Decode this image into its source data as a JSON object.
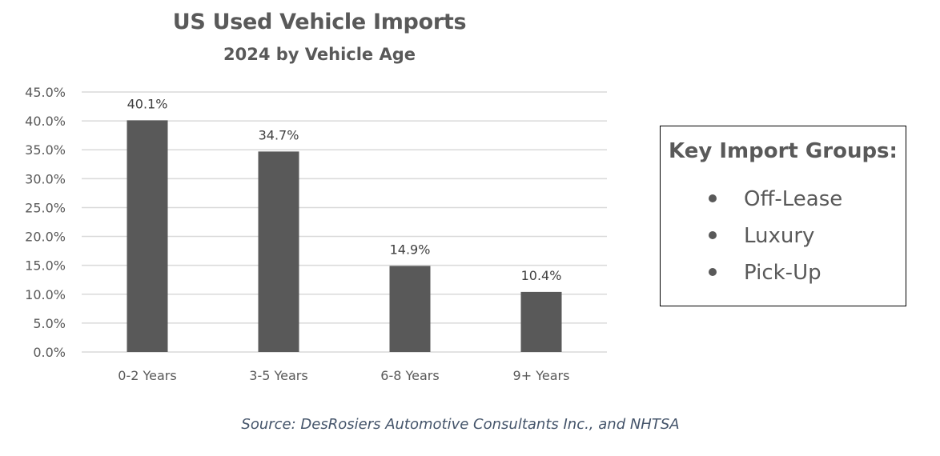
{
  "chart_data": {
    "type": "bar",
    "title": "US Used Vehicle Imports",
    "subtitle": "2024 by Vehicle Age",
    "xlabel": "",
    "ylabel": "",
    "categories": [
      "0-2 Years",
      "3-5 Years",
      "6-8 Years",
      "9+ Years"
    ],
    "values": [
      40.1,
      34.7,
      14.9,
      10.4
    ],
    "data_labels": [
      "40.1%",
      "34.7%",
      "14.9%",
      "10.4%"
    ],
    "ylim": [
      0,
      45
    ],
    "yticks": [
      0,
      5,
      10,
      15,
      20,
      25,
      30,
      35,
      40,
      45
    ],
    "ytick_labels": [
      "0.0%",
      "5.0%",
      "10.0%",
      "15.0%",
      "20.0%",
      "25.0%",
      "30.0%",
      "35.0%",
      "40.0%",
      "45.0%"
    ],
    "grid": true,
    "bar_color": "#595959",
    "grid_color": "#d9d9d9",
    "legend": "none"
  },
  "legend_box": {
    "title": "Key Import Groups:",
    "items": [
      "Off-Lease",
      "Luxury",
      "Pick-Up"
    ]
  },
  "source": "Source: DesRosiers Automotive Consultants Inc., and NHTSA"
}
